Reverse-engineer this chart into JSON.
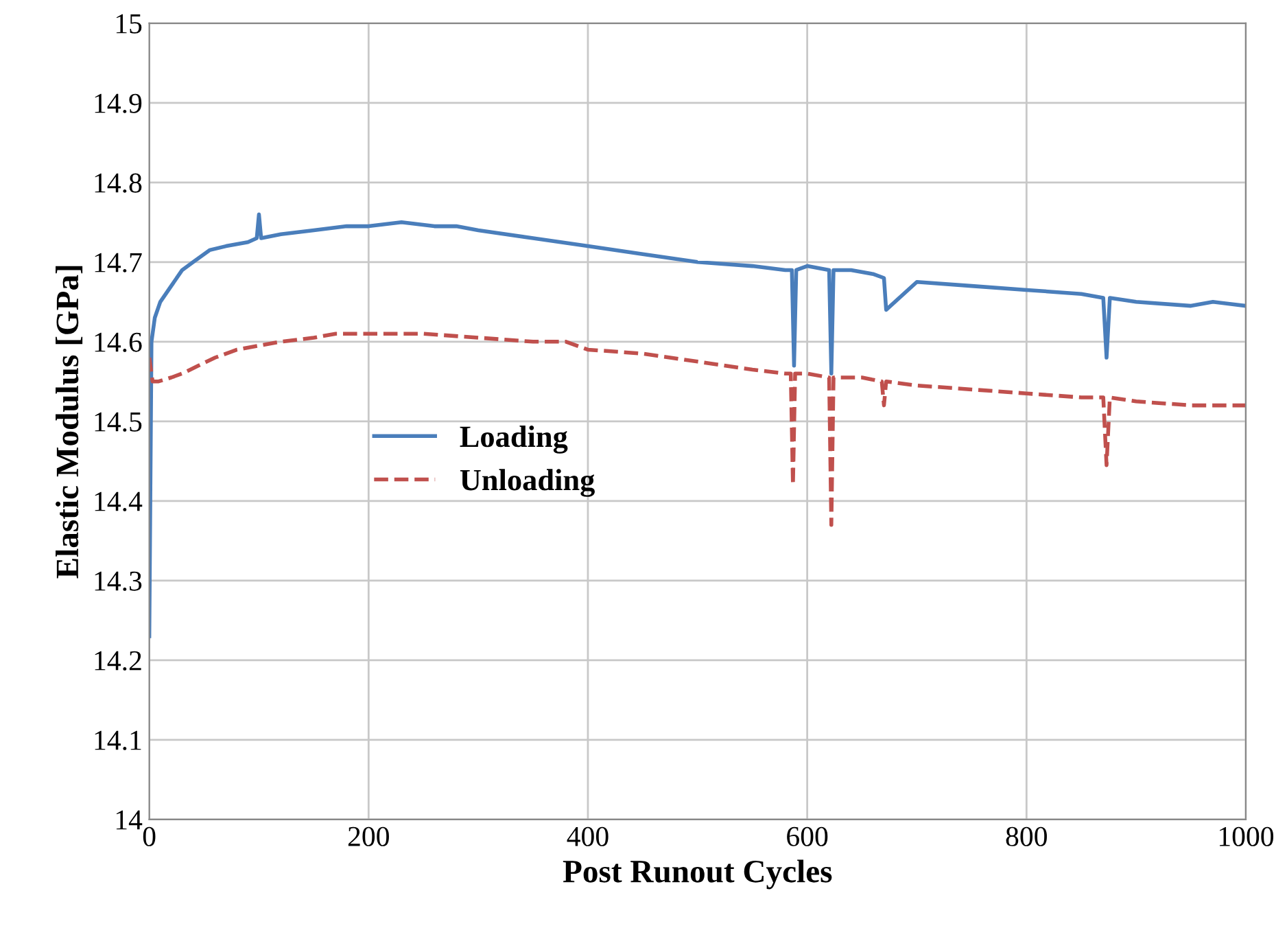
{
  "chart_data": {
    "type": "line",
    "xlabel": "Post Runout Cycles",
    "ylabel": "Elastic Modulus [GPa]",
    "xlim": [
      0,
      1000
    ],
    "xticks": [
      0,
      200,
      400,
      600,
      800,
      1000
    ],
    "ylim": [
      14,
      15
    ],
    "yticks": [
      14,
      14.1,
      14.2,
      14.3,
      14.4,
      14.5,
      14.6,
      14.7,
      14.8,
      14.9,
      15
    ],
    "grid": true,
    "legend": "left",
    "marker": "none",
    "series": [
      {
        "name": "Loading",
        "color": "#4a7ebb",
        "line_style": "solid",
        "x": [
          0,
          2,
          5,
          10,
          20,
          30,
          40,
          55,
          70,
          90,
          98,
          100,
          102,
          120,
          150,
          180,
          200,
          230,
          260,
          280,
          300,
          350,
          400,
          450,
          500,
          550,
          580,
          586,
          588,
          590,
          600,
          620,
          622,
          624,
          640,
          660,
          670,
          672,
          700,
          750,
          800,
          850,
          870,
          873,
          876,
          900,
          950,
          970,
          1000
        ],
        "values": [
          14.23,
          14.6,
          14.63,
          14.65,
          14.67,
          14.69,
          14.7,
          14.715,
          14.72,
          14.725,
          14.73,
          14.76,
          14.73,
          14.735,
          14.74,
          14.745,
          14.745,
          14.75,
          14.745,
          14.745,
          14.74,
          14.73,
          14.72,
          14.71,
          14.7,
          14.695,
          14.69,
          14.69,
          14.57,
          14.69,
          14.695,
          14.69,
          14.56,
          14.69,
          14.69,
          14.685,
          14.68,
          14.64,
          14.675,
          14.67,
          14.665,
          14.66,
          14.655,
          14.58,
          14.655,
          14.65,
          14.645,
          14.65,
          14.645
        ]
      },
      {
        "name": "Unloading",
        "color": "#c0504d",
        "line_style": "dashed",
        "x": [
          0,
          3,
          8,
          20,
          30,
          45,
          60,
          80,
          100,
          120,
          150,
          170,
          200,
          250,
          300,
          350,
          380,
          400,
          450,
          500,
          550,
          580,
          585,
          587,
          589,
          600,
          620,
          622,
          624,
          650,
          668,
          670,
          672,
          700,
          750,
          800,
          850,
          870,
          873,
          876,
          900,
          950,
          1000
        ],
        "values": [
          14.58,
          14.55,
          14.55,
          14.555,
          14.56,
          14.57,
          14.58,
          14.59,
          14.595,
          14.6,
          14.605,
          14.61,
          14.61,
          14.61,
          14.605,
          14.6,
          14.6,
          14.59,
          14.585,
          14.575,
          14.565,
          14.56,
          14.56,
          14.42,
          14.56,
          14.56,
          14.555,
          14.37,
          14.555,
          14.555,
          14.55,
          14.52,
          14.55,
          14.545,
          14.54,
          14.535,
          14.53,
          14.53,
          14.445,
          14.53,
          14.525,
          14.52,
          14.52
        ]
      }
    ]
  }
}
